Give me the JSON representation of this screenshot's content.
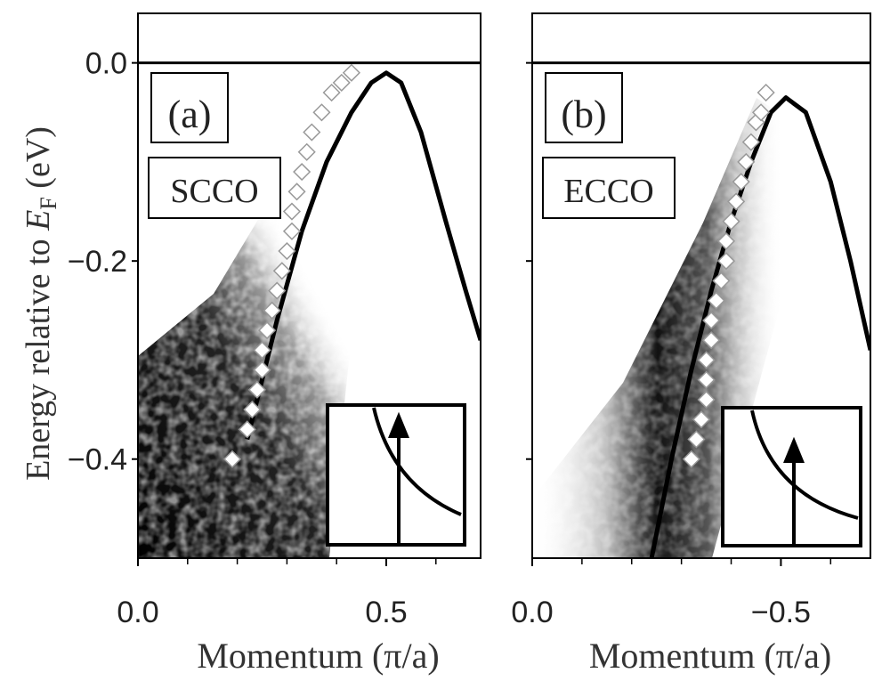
{
  "chart_data": [
    {
      "type": "scatter",
      "panel_label": "(a)",
      "sample": "SCCO",
      "ylabel": {
        "text": "Energy relative to ",
        "symbol": "E",
        "subscript": "F",
        "unit": " (eV)"
      },
      "xlabel": "Momentum (π/a)",
      "xlim": [
        0,
        0.69
      ],
      "ylim": [
        -0.5,
        0.05
      ],
      "xticks": [
        {
          "value": 0,
          "label": "0.0"
        },
        {
          "value": 0.5,
          "label": "0.5"
        }
      ],
      "xminorticks": [
        0.1,
        0.2,
        0.3,
        0.4,
        0.6
      ],
      "yticks": [
        {
          "value": 0,
          "label": "0.0"
        },
        {
          "value": -0.2,
          "label": "−0.2"
        },
        {
          "value": -0.4,
          "label": "−0.4"
        }
      ],
      "show_ytick_labels": true,
      "reference_line": 0,
      "series": [
        {
          "type": "line",
          "color": "#000000",
          "x": [
            0.22,
            0.28,
            0.33,
            0.38,
            0.43,
            0.47,
            0.5,
            0.53,
            0.57,
            0.62,
            0.66,
            0.69
          ],
          "values": [
            -0.38,
            -0.26,
            -0.17,
            -0.1,
            -0.05,
            -0.02,
            -0.01,
            -0.02,
            -0.07,
            -0.16,
            -0.23,
            -0.28
          ]
        },
        {
          "type": "scatter",
          "color": "#ffffff",
          "x": [
            0.19,
            0.22,
            0.23,
            0.24,
            0.25,
            0.25,
            0.26,
            0.27,
            0.28,
            0.29,
            0.3,
            0.31,
            0.31,
            0.32,
            0.33,
            0.34,
            0.35,
            0.37,
            0.39,
            0.41,
            0.43
          ],
          "values": [
            -0.4,
            -0.37,
            -0.35,
            -0.33,
            -0.31,
            -0.29,
            -0.27,
            -0.25,
            -0.23,
            -0.21,
            -0.19,
            -0.17,
            -0.15,
            -0.13,
            -0.11,
            -0.09,
            -0.07,
            -0.05,
            -0.03,
            -0.02,
            -0.01
          ]
        }
      ]
    },
    {
      "type": "scatter",
      "panel_label": "(b)",
      "sample": "ECCO",
      "xlabel": "Momentum (π/a)",
      "xlim": [
        0,
        -0.68
      ],
      "ylim": [
        -0.5,
        0.05
      ],
      "xticks": [
        {
          "value": 0,
          "label": "0.0"
        },
        {
          "value": -0.5,
          "label": "−0.5"
        }
      ],
      "xminorticks": [
        -0.1,
        -0.2,
        -0.3,
        -0.4,
        -0.6
      ],
      "yticks": [
        0,
        -0.2,
        -0.4
      ],
      "show_ytick_labels": false,
      "reference_line": 0,
      "series": [
        {
          "type": "line",
          "color": "#000000",
          "x": [
            -0.24,
            -0.28,
            -0.32,
            -0.36,
            -0.4,
            -0.44,
            -0.48,
            -0.51,
            -0.55,
            -0.6,
            -0.64,
            -0.68
          ],
          "values": [
            -0.5,
            -0.4,
            -0.31,
            -0.23,
            -0.16,
            -0.1,
            -0.05,
            -0.035,
            -0.05,
            -0.12,
            -0.2,
            -0.29
          ]
        },
        {
          "type": "scatter",
          "color": "#ffffff",
          "x": [
            -0.32,
            -0.33,
            -0.34,
            -0.35,
            -0.35,
            -0.35,
            -0.36,
            -0.36,
            -0.37,
            -0.38,
            -0.39,
            -0.39,
            -0.4,
            -0.41,
            -0.42,
            -0.43,
            -0.44,
            -0.45,
            -0.46,
            -0.47
          ],
          "values": [
            -0.4,
            -0.38,
            -0.36,
            -0.34,
            -0.32,
            -0.3,
            -0.28,
            -0.26,
            -0.24,
            -0.22,
            -0.2,
            -0.18,
            -0.16,
            -0.14,
            -0.12,
            -0.1,
            -0.08,
            -0.06,
            -0.05,
            -0.03
          ]
        }
      ]
    }
  ]
}
